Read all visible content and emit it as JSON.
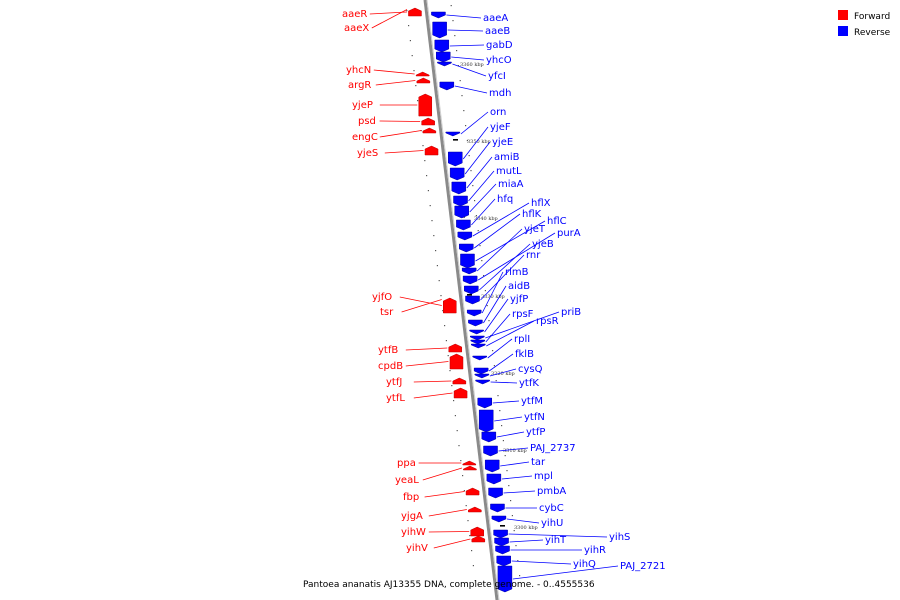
{
  "caption": "Pantoea ananatis AJ13355 DNA, complete genome. - 0..4555536",
  "legend": [
    {
      "label": "Forward",
      "color": "#ff0000"
    },
    {
      "label": "Reverse",
      "color": "#0000ff"
    }
  ],
  "colors": {
    "forward": "#ff0000",
    "reverse": "#0000ff",
    "axis": "#999999"
  },
  "scale_labels": [
    "3360 kbp",
    "3350 kbp",
    "3340 kbp",
    "3330 kbp",
    "3320 kbp",
    "3310 kbp",
    "3300 kbp"
  ],
  "forward_genes": [
    "aaeR",
    "aaeX",
    "yhcN",
    "argR",
    "yjeP",
    "psd",
    "engC",
    "yjeS",
    "yjfO",
    "tsr",
    "ytfB",
    "cpdB",
    "ytfJ",
    "ytfL",
    "ppa",
    "yeaL",
    "fbp",
    "yjgA",
    "yihW",
    "yihV"
  ],
  "reverse_genes": [
    "aaeA",
    "aaeB",
    "gabD",
    "yhcO",
    "yfcI",
    "mdh",
    "orn",
    "yjeF",
    "yjeE",
    "amiB",
    "mutL",
    "miaA",
    "hfq",
    "hflX",
    "hflK",
    "hflC",
    "yjeT",
    "purA",
    "yjeB",
    "rnr",
    "rlmB",
    "aidB",
    "yjfP",
    "priB",
    "rpsF",
    "rpsR",
    "rplI",
    "fklB",
    "cysQ",
    "ytfK",
    "ytfM",
    "ytfN",
    "ytfP",
    "PAJ_2737",
    "tar",
    "mpl",
    "pmbA",
    "cybC",
    "yihU",
    "yihS",
    "yihT",
    "yihR",
    "yihQ",
    "PAJ_2721"
  ]
}
